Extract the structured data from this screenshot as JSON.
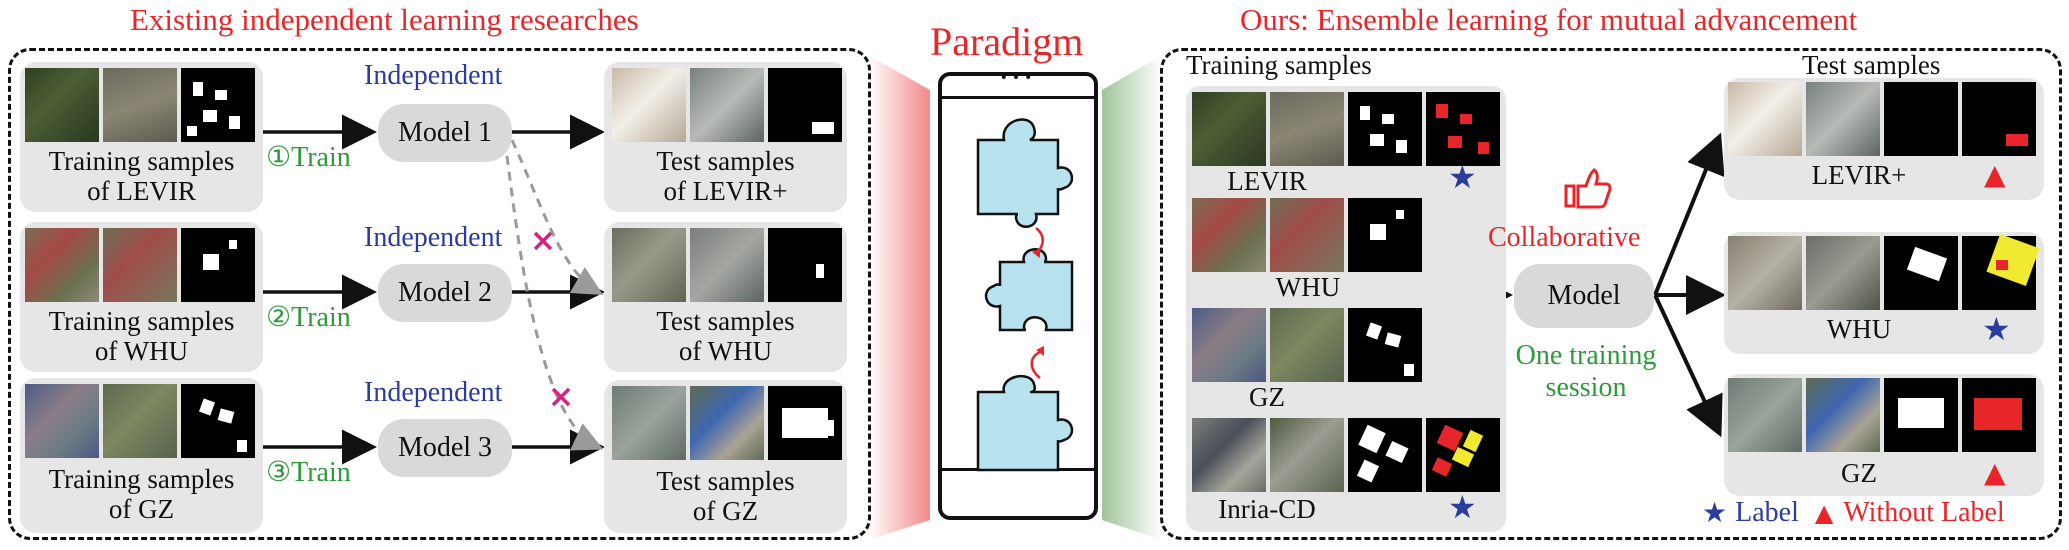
{
  "left": {
    "title": "Existing independent learning researches",
    "rows": [
      {
        "train_caption": "Training samples\nof LEVIR",
        "step": "①Train",
        "indep": "Independent",
        "model": "Model 1",
        "test_caption": "Test samples\nof LEVIR+"
      },
      {
        "train_caption": "Training samples\nof WHU",
        "step": "②Train",
        "indep": "Independent",
        "model": "Model 2",
        "test_caption": "Test samples\nof WHU"
      },
      {
        "train_caption": "Training samples\nof GZ",
        "step": "③Train",
        "indep": "Independent",
        "model": "Model 3",
        "test_caption": "Test samples\nof GZ"
      }
    ]
  },
  "center": {
    "title": "Paradigm",
    "dots": "•••"
  },
  "right": {
    "title": "Ours: Ensemble learning for mutual advancement",
    "training_title": "Training samples",
    "test_title": "Test samples",
    "train_sets": [
      "LEVIR",
      "WHU",
      "GZ",
      "Inria-CD"
    ],
    "test_sets": [
      "LEVIR+",
      "WHU",
      "GZ"
    ],
    "model": "Model",
    "collab": "Collaborative",
    "session": "One training\nsession",
    "legend_label": "Label",
    "legend_nolabel": "Without Label"
  },
  "colors": {
    "accent_red": "#e8262a",
    "blue": "#2b3d9c",
    "green": "#2e9a3a",
    "puzzle": "#b7e2ee",
    "dash_gray": "#9a9a9a",
    "cross": "#d6247e"
  }
}
